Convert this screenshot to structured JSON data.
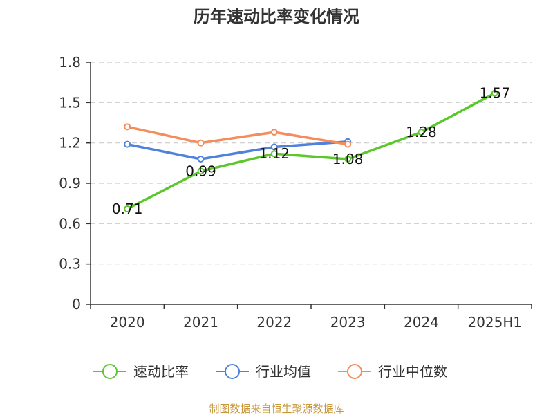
{
  "chart_data": {
    "type": "line",
    "title": "历年速动比率变化情况",
    "categories": [
      "2020",
      "2021",
      "2022",
      "2023",
      "2024",
      "2025H1"
    ],
    "ylim": [
      0,
      1.8
    ],
    "yticks": [
      0,
      0.3,
      0.6,
      0.9,
      1.2,
      1.5,
      1.8
    ],
    "ytick_labels": [
      "0",
      "0.3",
      "0.6",
      "0.9",
      "1.2",
      "1.5",
      "1.8"
    ],
    "grid": true,
    "legend_position": "bottom",
    "series": [
      {
        "name": "速动比率",
        "color": "#5cc72c",
        "values": [
          0.71,
          0.99,
          1.12,
          1.08,
          1.28,
          1.57
        ],
        "data_labels": [
          "0.71",
          "0.99",
          "1.12",
          "1.08",
          "1.28",
          "1.57"
        ]
      },
      {
        "name": "行业均值",
        "color": "#4f81dd",
        "values": [
          1.19,
          1.08,
          1.17,
          1.21,
          null,
          null
        ]
      },
      {
        "name": "行业中位数",
        "color": "#f58c5a",
        "values": [
          1.32,
          1.2,
          1.28,
          1.19,
          null,
          null
        ]
      }
    ]
  },
  "source": "制图数据来自恒生聚源数据库"
}
